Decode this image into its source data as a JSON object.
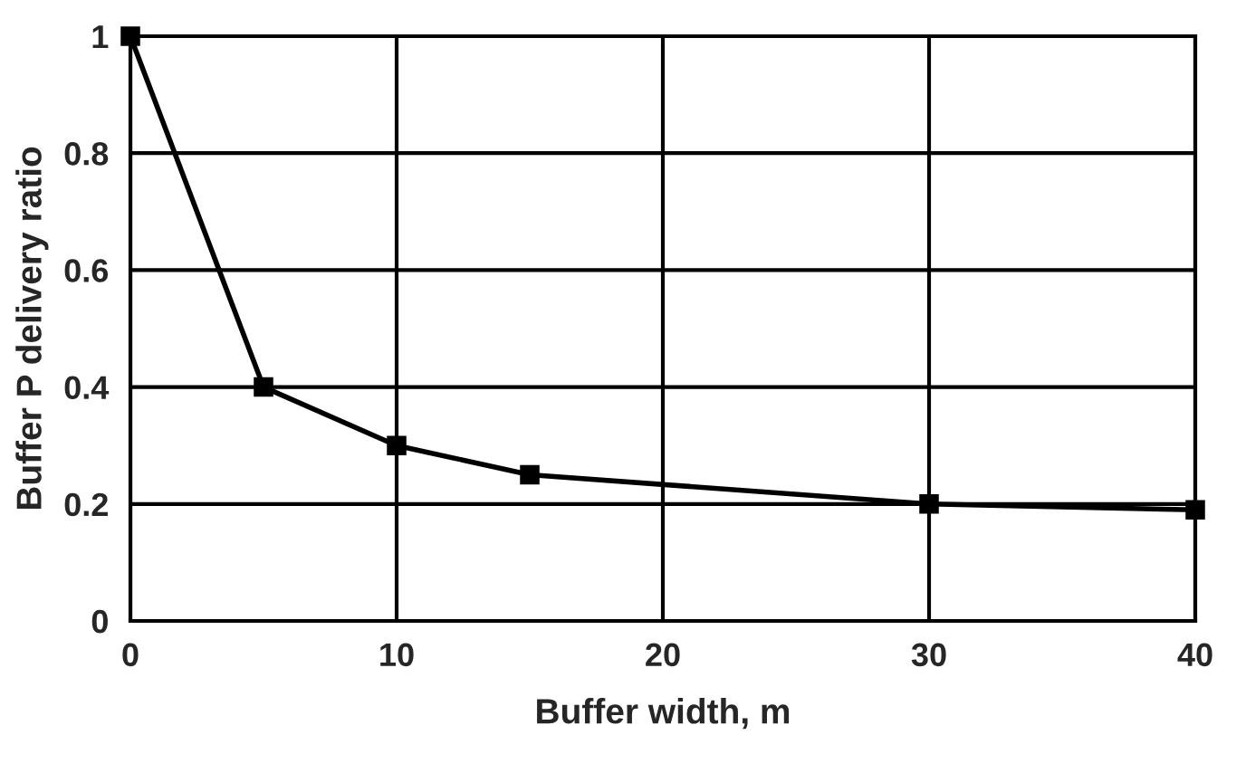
{
  "chart_data": {
    "type": "line",
    "xlabel": "Buffer width, m",
    "ylabel": "Buffer P delivery ratio",
    "x": [
      0,
      5,
      10,
      15,
      30,
      40
    ],
    "series": [
      {
        "color": "#000000",
        "values": [
          1.0,
          0.4,
          0.3,
          0.25,
          0.2,
          0.19
        ]
      }
    ],
    "xlim": [
      0,
      40
    ],
    "xticks": [
      0,
      10,
      20,
      30,
      40
    ],
    "ylim": [
      0,
      1
    ],
    "yticks": [
      0,
      0.2,
      0.4,
      0.6,
      0.8,
      1
    ],
    "grid": true,
    "marker": "square",
    "line_style": "solid"
  }
}
